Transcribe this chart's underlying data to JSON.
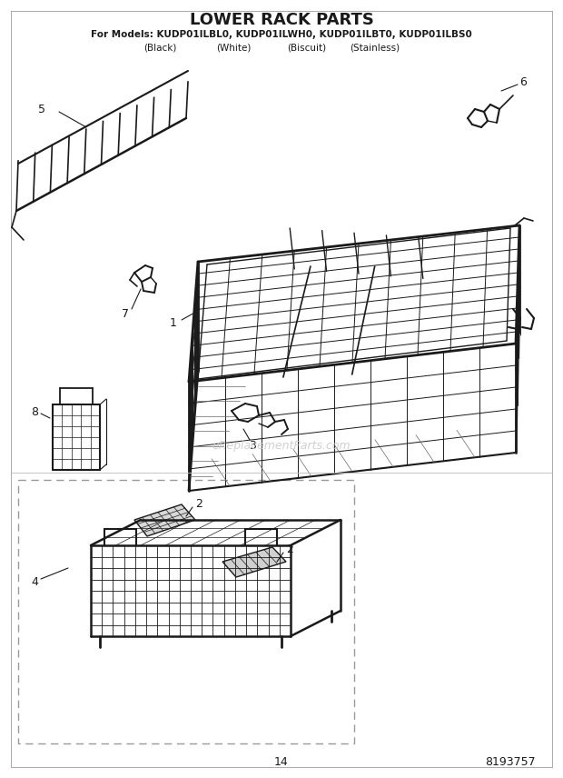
{
  "title": "LOWER RACK PARTS",
  "subtitle_line1": "For Models: KUDP01ILBL0, KUDP01ILWH0, KUDP01ILBT0, KUDP01ILBS0",
  "subtitle_line2_cols": [
    "(Black)",
    "(White)",
    "(Biscuit)",
    "(Stainless)"
  ],
  "subtitle_line2_x": [
    0.285,
    0.415,
    0.545,
    0.665
  ],
  "page_number": "14",
  "part_number": "8193757",
  "watermark": "eReplacementParts.com",
  "bg": "#ffffff",
  "lc": "#1a1a1a",
  "wm_color": "#c8c8c8"
}
